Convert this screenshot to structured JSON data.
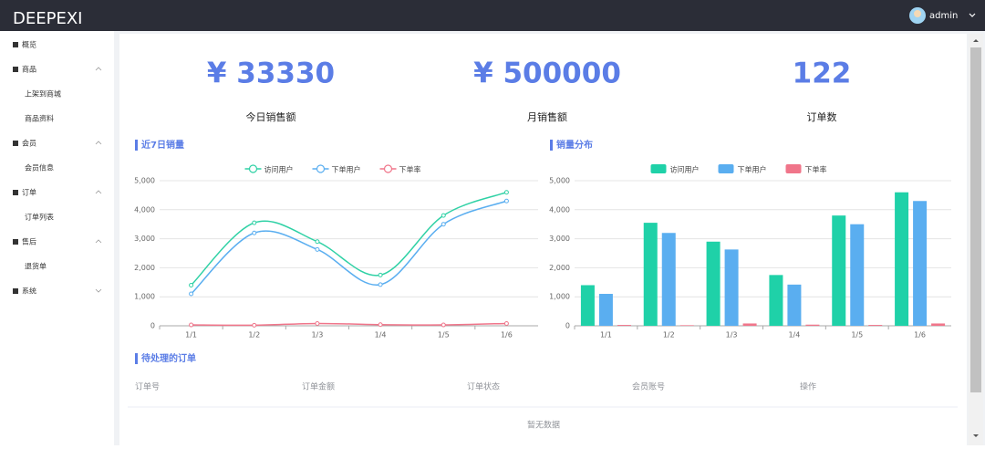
{
  "header": {
    "brand": "DEEPEXI",
    "user": "admin"
  },
  "sidebar": [
    {
      "label": "概览"
    },
    {
      "label": "商品",
      "children": [
        "上架到商城",
        "商品资料"
      ]
    },
    {
      "label": "会员",
      "children": [
        "会员信息"
      ]
    },
    {
      "label": "订单",
      "children": [
        "订单列表"
      ]
    },
    {
      "label": "售后",
      "children": [
        "退货单"
      ]
    },
    {
      "label": "系统"
    }
  ],
  "stats": [
    {
      "value": "¥ 33330",
      "label": "今日销售额"
    },
    {
      "value": "¥ 500000",
      "label": "月销售额"
    },
    {
      "value": "122",
      "label": "订单数"
    }
  ],
  "chart_data": [
    {
      "type": "line",
      "title": "近7日销量",
      "categories": [
        "1/1",
        "1/2",
        "1/3",
        "1/4",
        "1/5",
        "1/6"
      ],
      "series": [
        {
          "name": "访问用户",
          "color": "#2fd1a5",
          "values": [
            1400,
            3550,
            2900,
            1750,
            3800,
            4600
          ]
        },
        {
          "name": "下单用户",
          "color": "#5aaef0",
          "values": [
            1100,
            3200,
            2630,
            1420,
            3500,
            4300
          ]
        },
        {
          "name": "下单率",
          "color": "#f0758a",
          "values": [
            30,
            20,
            80,
            40,
            30,
            80
          ]
        }
      ],
      "ylim": [
        0,
        5000
      ],
      "yticks": [
        0,
        {
          "value": 1000,
          "label": "1,000"
        },
        {
          "value": 2000,
          "label": "2,000"
        },
        {
          "value": 3000,
          "label": "3,000"
        },
        {
          "value": 4000,
          "label": "4,000"
        },
        {
          "value": 5000,
          "label": "5,000"
        }
      ],
      "grid": true,
      "legend": "top"
    },
    {
      "type": "bar",
      "title": "销量分布",
      "categories": [
        "1/1",
        "1/2",
        "1/3",
        "1/4",
        "1/5",
        "1/6"
      ],
      "series": [
        {
          "name": "访问用户",
          "color": "#1fd1a8",
          "values": [
            1400,
            3550,
            2900,
            1750,
            3800,
            4600
          ]
        },
        {
          "name": "下单用户",
          "color": "#5aaef0",
          "values": [
            1100,
            3200,
            2630,
            1420,
            3500,
            4300
          ]
        },
        {
          "name": "下单率",
          "color": "#f0758a",
          "values": [
            30,
            20,
            80,
            40,
            30,
            80
          ]
        }
      ],
      "ylim": [
        0,
        5000
      ],
      "yticks": [
        0,
        {
          "value": 1000,
          "label": "1,000"
        },
        {
          "value": 2000,
          "label": "2,000"
        },
        {
          "value": 3000,
          "label": "3,000"
        },
        {
          "value": 4000,
          "label": "4,000"
        },
        {
          "value": 5000,
          "label": "5,000"
        }
      ],
      "grid": true,
      "legend": "top"
    }
  ],
  "table": {
    "title": "待处理的订单",
    "columns": [
      "订单号",
      "订单金额",
      "订单状态",
      "会员账号",
      "操作"
    ],
    "empty": "暂无数据"
  }
}
